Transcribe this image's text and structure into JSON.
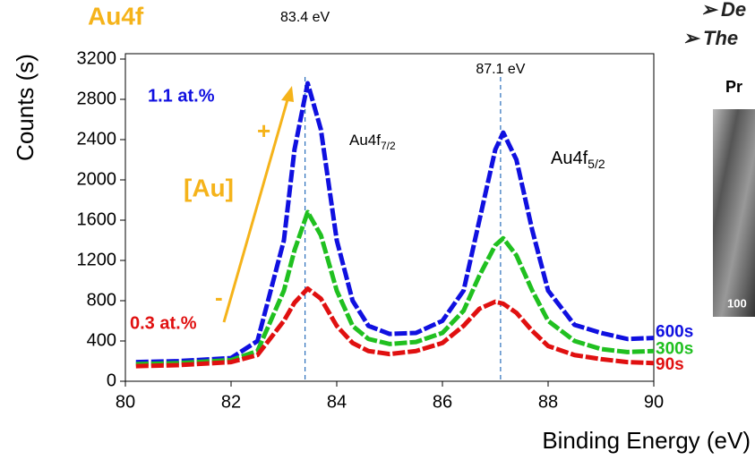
{
  "chart_data": {
    "type": "line",
    "title": "Au4f",
    "ylabel": "Counts (s)",
    "xlabel": "Binding Energy (eV)",
    "x": [
      80.2,
      81,
      82,
      82.5,
      83,
      83.2,
      83.45,
      83.7,
      84,
      84.3,
      84.6,
      85,
      85.5,
      86,
      86.4,
      86.7,
      87,
      87.15,
      87.4,
      87.7,
      88,
      88.5,
      89,
      89.5,
      90
    ],
    "series": [
      {
        "name": "600s",
        "color": "#1010e0",
        "values": [
          190,
          200,
          230,
          400,
          1400,
          2300,
          2960,
          2500,
          1400,
          800,
          550,
          470,
          480,
          600,
          900,
          1600,
          2300,
          2470,
          2200,
          1500,
          900,
          560,
          480,
          420,
          430
        ]
      },
      {
        "name": "300s",
        "color": "#20c020",
        "values": [
          170,
          180,
          210,
          300,
          900,
          1300,
          1680,
          1450,
          900,
          550,
          420,
          370,
          390,
          480,
          700,
          1050,
          1350,
          1420,
          1250,
          900,
          600,
          400,
          320,
          290,
          300
        ]
      },
      {
        "name": "90s",
        "color": "#e01010",
        "values": [
          150,
          160,
          190,
          260,
          600,
          780,
          920,
          820,
          550,
          380,
          300,
          270,
          300,
          380,
          550,
          720,
          790,
          770,
          680,
          500,
          350,
          260,
          220,
          190,
          180
        ]
      }
    ],
    "xlim": [
      80,
      90
    ],
    "ylim": [
      0,
      3200
    ],
    "xticks": [
      80,
      82,
      84,
      86,
      88,
      90
    ],
    "yticks": [
      0,
      400,
      800,
      1200,
      1600,
      2000,
      2400,
      2800,
      3200
    ],
    "peaks": [
      {
        "value": 83.4,
        "label": "83.4 eV"
      },
      {
        "value": 87.1,
        "label": "87.1 eV"
      }
    ],
    "peak_names": [
      {
        "base": "Au4f",
        "sub": "7/2"
      },
      {
        "base": "Au4f",
        "sub": "5/2"
      }
    ],
    "annotations": {
      "high": "1.1 at.%",
      "low": "0.3 at.%",
      "plus": "+",
      "minus": "-",
      "element": "[Au]"
    }
  },
  "slide": {
    "bullets": [
      "De",
      "The"
    ],
    "panel_label": "Pr",
    "scale_label": "100"
  }
}
